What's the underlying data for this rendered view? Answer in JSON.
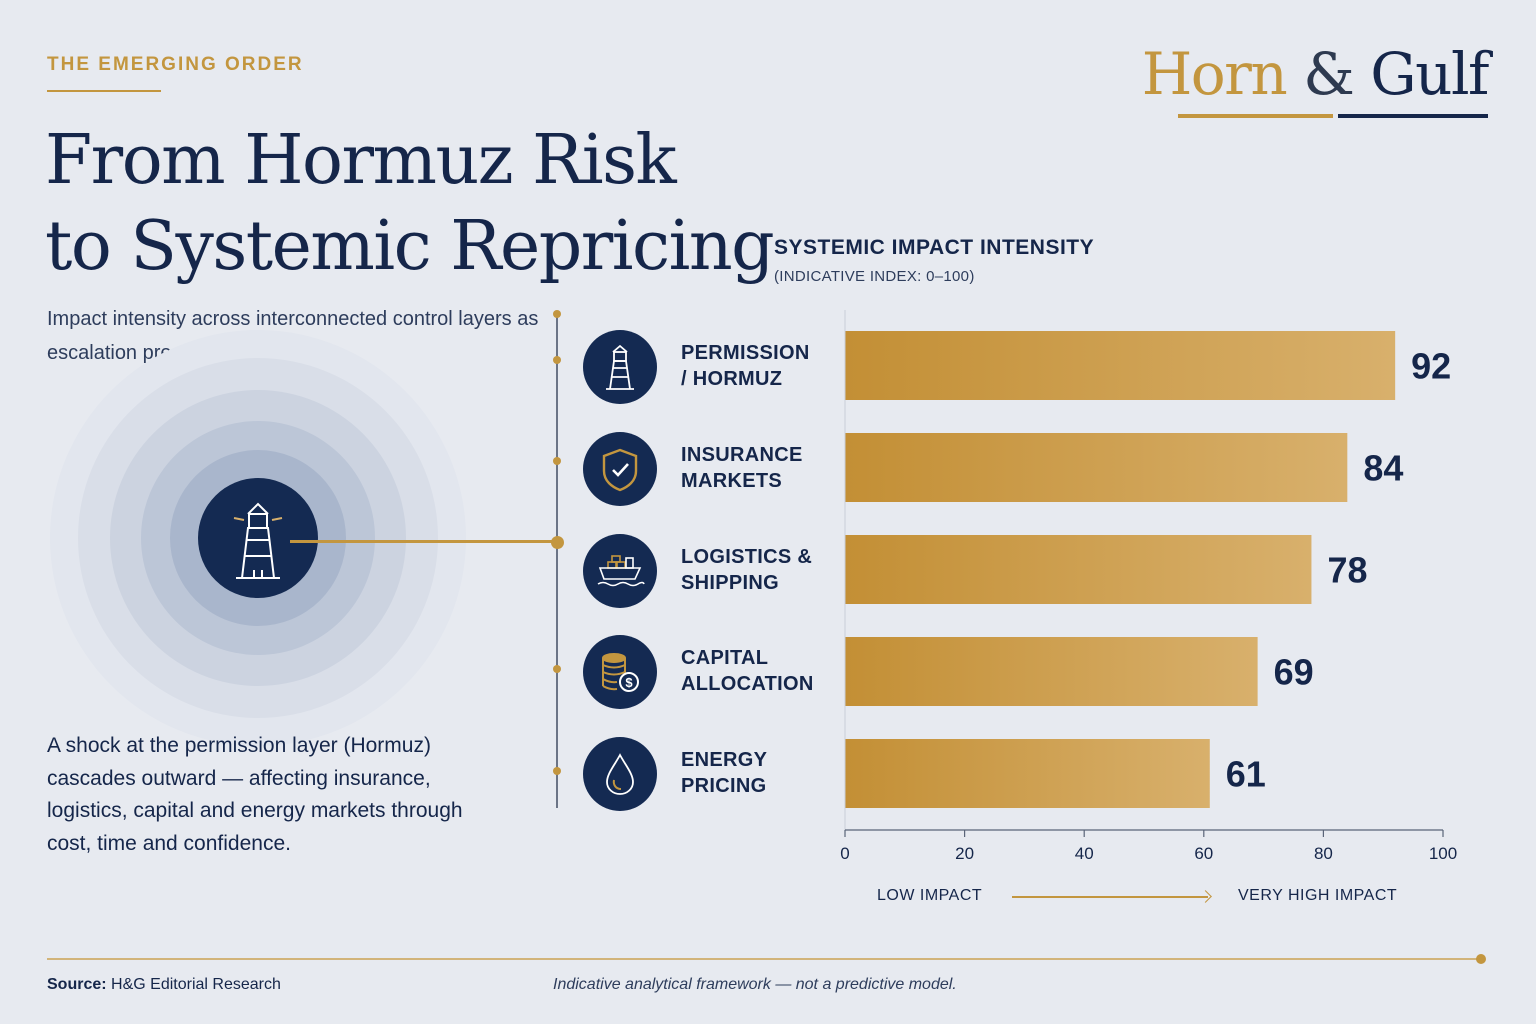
{
  "header": {
    "kicker": "THE EMERGING ORDER",
    "title_line1": "From Hormuz Risk",
    "title_line2": "to Systemic Repricing",
    "subtitle": "Impact intensity across interconnected control layers as escalation pressure rises."
  },
  "logo": {
    "part1": "Horn",
    "amp": "&",
    "part2": "Gulf"
  },
  "body_text": "A shock at the permission layer (Hormuz) cascades outward — affecting insurance, logistics, capital and energy markets through cost, time and confidence.",
  "footer": {
    "source_label": "Source:",
    "source_value": "H&G Editorial Research",
    "disclaimer": "Indicative analytical framework — not a predictive model."
  },
  "scale": {
    "low": "LOW IMPACT",
    "high": "VERY HIGH IMPACT"
  },
  "colors": {
    "navy": "#15264a",
    "gold": "#c3963f",
    "bar_start": "#c38f35",
    "bar_end": "#d8b06c",
    "background": "#e7eaf0"
  },
  "chart_data": {
    "type": "bar",
    "orientation": "horizontal",
    "title": "SYSTEMIC IMPACT INTENSITY",
    "subtitle": "(INDICATIVE INDEX: 0–100)",
    "categories": [
      {
        "line1": "PERMISSION",
        "line2": "/ HORMUZ",
        "icon": "lighthouse-icon"
      },
      {
        "line1": "INSURANCE",
        "line2": "MARKETS",
        "icon": "shield-check-icon"
      },
      {
        "line1": "LOGISTICS &",
        "line2": "SHIPPING",
        "icon": "cargo-ship-icon"
      },
      {
        "line1": "CAPITAL",
        "line2": "ALLOCATION",
        "icon": "coin-stack-icon"
      },
      {
        "line1": "ENERGY",
        "line2": "PRICING",
        "icon": "oil-drop-icon"
      }
    ],
    "values": [
      92,
      84,
      78,
      69,
      61
    ],
    "value_labels": [
      "92",
      "84",
      "78",
      "69",
      "61"
    ],
    "xlim": [
      0,
      100
    ],
    "xticks": [
      0,
      20,
      40,
      60,
      80,
      100
    ],
    "xtick_labels": [
      "0",
      "20",
      "40",
      "60",
      "80",
      "100"
    ],
    "grid": false
  }
}
